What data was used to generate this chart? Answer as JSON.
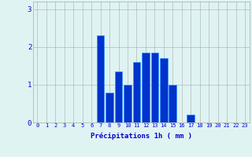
{
  "hours": [
    0,
    1,
    2,
    3,
    4,
    5,
    6,
    7,
    8,
    9,
    10,
    11,
    12,
    13,
    14,
    15,
    16,
    17,
    18,
    19,
    20,
    21,
    22,
    23
  ],
  "values": [
    0,
    0,
    0,
    0,
    0,
    0,
    0,
    2.3,
    0.8,
    1.35,
    1.0,
    1.6,
    1.85,
    1.85,
    1.7,
    1.0,
    0,
    0.2,
    0,
    0,
    0,
    0,
    0,
    0
  ],
  "bar_color": "#0033cc",
  "bar_edge_color": "#3399ff",
  "background_color": "#dff3f3",
  "grid_color": "#aaaaaa",
  "xlabel": "Précipitations 1h ( mm )",
  "xlabel_color": "#0000cc",
  "tick_color": "#0000cc",
  "ylim": [
    0,
    3.2
  ],
  "yticks": [
    0,
    1,
    2,
    3
  ],
  "xticks": [
    0,
    1,
    2,
    3,
    4,
    5,
    6,
    7,
    8,
    9,
    10,
    11,
    12,
    13,
    14,
    15,
    16,
    17,
    18,
    19,
    20,
    21,
    22,
    23
  ]
}
